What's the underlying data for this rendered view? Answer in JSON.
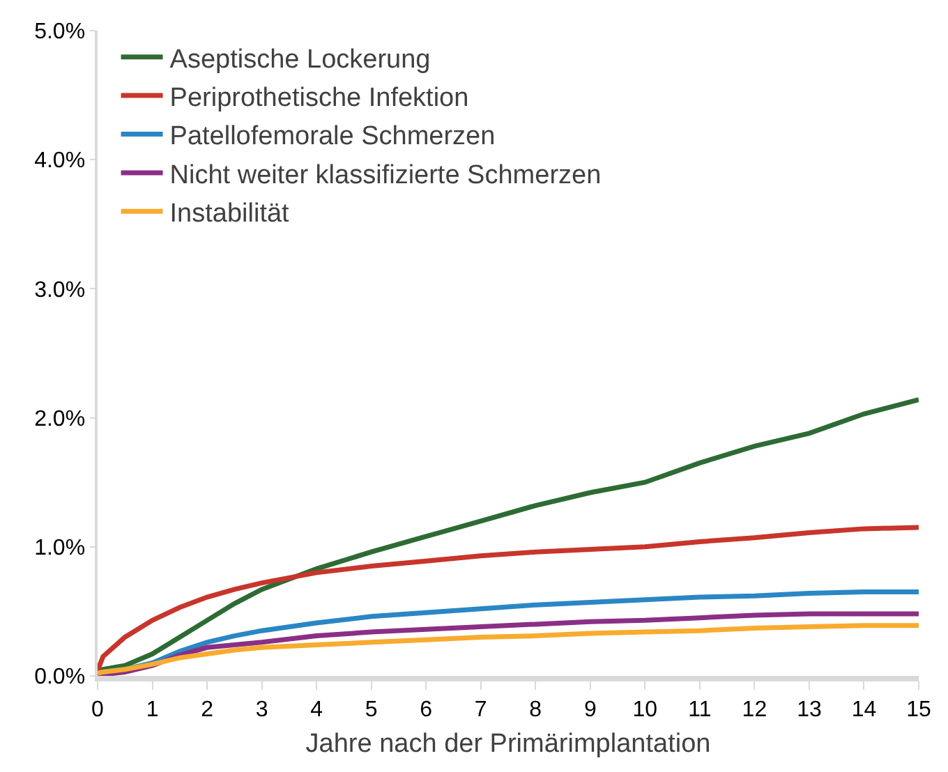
{
  "chart_data": {
    "type": "line",
    "xlabel": "Jahre nach der Primärimplantation",
    "xlim": [
      0,
      15
    ],
    "xticks": [
      0,
      1,
      2,
      3,
      4,
      5,
      6,
      7,
      8,
      9,
      10,
      11,
      12,
      13,
      14,
      15
    ],
    "ylim": [
      0,
      5
    ],
    "yticks": [
      {
        "value": 0,
        "label": "0.0%"
      },
      {
        "value": 1,
        "label": "1.0%"
      },
      {
        "value": 2,
        "label": "2.0%"
      },
      {
        "value": 3,
        "label": "3.0%"
      },
      {
        "value": 4,
        "label": "4.0%"
      },
      {
        "value": 5,
        "label": "5.0%"
      }
    ],
    "grid": false,
    "legend": "top left",
    "marker": "none",
    "line_style": "solid",
    "x": [
      0,
      0.1,
      0.5,
      1,
      1.5,
      2,
      2.5,
      3,
      4,
      5,
      6,
      7,
      8,
      9,
      10,
      11,
      12,
      13,
      14,
      15
    ],
    "series": [
      {
        "name": "Aseptische Lockerung",
        "color": "#2e6b34",
        "values": [
          0.04,
          0.05,
          0.08,
          0.17,
          0.3,
          0.43,
          0.56,
          0.67,
          0.83,
          0.96,
          1.08,
          1.2,
          1.32,
          1.42,
          1.5,
          1.65,
          1.78,
          1.88,
          2.03,
          2.14
        ]
      },
      {
        "name": "Periprothetische Infektion",
        "color": "#c8352b",
        "values": [
          0.04,
          0.15,
          0.3,
          0.43,
          0.53,
          0.61,
          0.67,
          0.72,
          0.8,
          0.85,
          0.89,
          0.93,
          0.96,
          0.98,
          1.0,
          1.04,
          1.07,
          1.11,
          1.14,
          1.15
        ]
      },
      {
        "name": "Patellofemorale Schmerzen",
        "color": "#2b86c5",
        "values": [
          0.02,
          0.03,
          0.05,
          0.1,
          0.19,
          0.26,
          0.31,
          0.35,
          0.41,
          0.46,
          0.49,
          0.52,
          0.55,
          0.57,
          0.59,
          0.61,
          0.62,
          0.64,
          0.65,
          0.65
        ]
      },
      {
        "name": "Nicht weiter klassifizierte Schmerzen",
        "color": "#8a2f85",
        "values": [
          0.0,
          0.01,
          0.03,
          0.08,
          0.16,
          0.22,
          0.24,
          0.26,
          0.31,
          0.34,
          0.36,
          0.38,
          0.4,
          0.42,
          0.43,
          0.45,
          0.47,
          0.48,
          0.48,
          0.48
        ]
      },
      {
        "name": "Instabilität",
        "color": "#f8ab2f",
        "values": [
          0.02,
          0.03,
          0.05,
          0.09,
          0.14,
          0.17,
          0.2,
          0.22,
          0.24,
          0.26,
          0.28,
          0.3,
          0.31,
          0.33,
          0.34,
          0.35,
          0.37,
          0.38,
          0.39,
          0.39
        ]
      }
    ]
  }
}
